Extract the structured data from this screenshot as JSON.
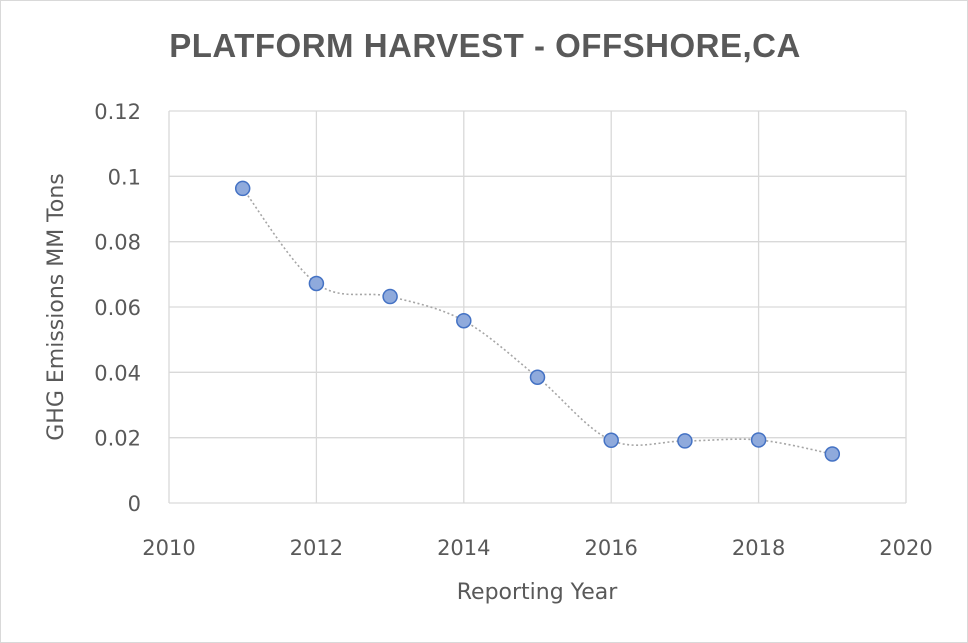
{
  "chart_data": {
    "type": "scatter",
    "title": "PLATFORM HARVEST - OFFSHORE,CA",
    "xlabel": "Reporting Year",
    "ylabel": "GHG Emissions MM Tons",
    "xlim": [
      2010,
      2020
    ],
    "ylim": [
      0,
      0.12
    ],
    "x_ticks": [
      "2010",
      "2012",
      "2014",
      "2016",
      "2018",
      "2020"
    ],
    "y_ticks": [
      "0",
      "0.02",
      "0.04",
      "0.06",
      "0.08",
      "0.1",
      "0.12"
    ],
    "x_tick_values": [
      2010,
      2012,
      2014,
      2016,
      2018,
      2020
    ],
    "y_tick_values": [
      0,
      0.02,
      0.04,
      0.06,
      0.08,
      0.1,
      0.12
    ],
    "grid": true,
    "legend": "none",
    "series": [
      {
        "x": [
          2011,
          2012,
          2013,
          2014,
          2015,
          2016,
          2017,
          2018,
          2019
        ],
        "y": [
          0.0963,
          0.0672,
          0.0632,
          0.0558,
          0.0385,
          0.0192,
          0.019,
          0.0193,
          0.015
        ],
        "marker_color": "#8faadc",
        "marker_edge": "#4472c4",
        "line_color": "#a6a6a6",
        "line_style": "dotted-smooth"
      }
    ]
  }
}
